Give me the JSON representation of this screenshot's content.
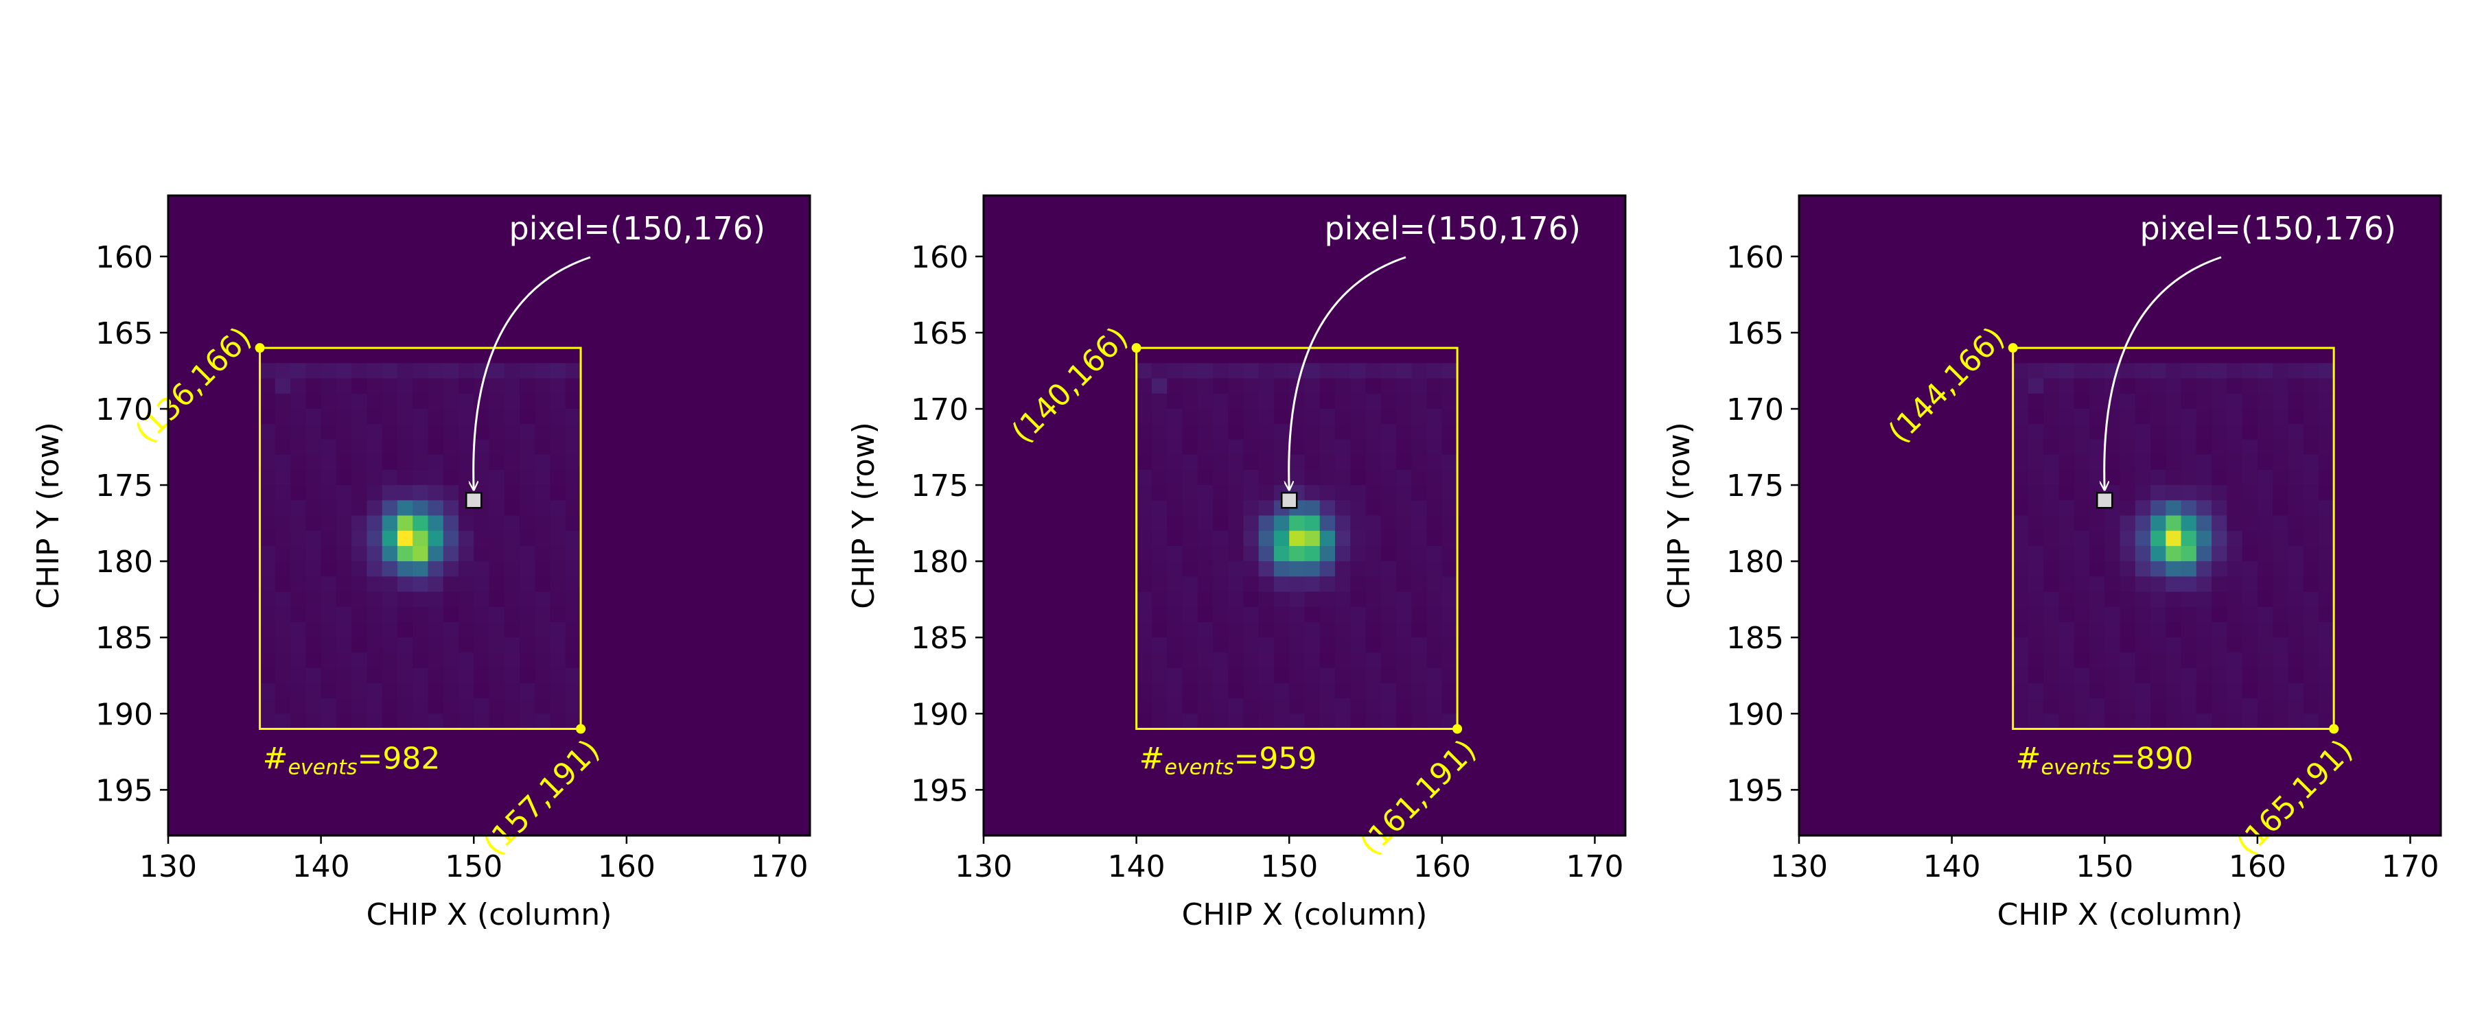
{
  "chart_data": [
    {
      "type": "heatmap",
      "xlabel": "CHIP X (column)",
      "ylabel": "CHIP Y (row)",
      "xlim": [
        130,
        172
      ],
      "ylim": [
        198,
        156
      ],
      "y_inverted": true,
      "xticks": [
        130,
        140,
        150,
        160,
        170
      ],
      "yticks": [
        160,
        165,
        170,
        175,
        180,
        185,
        190,
        195
      ],
      "xtick_labels": [
        "130",
        "140",
        "150",
        "160",
        "170"
      ],
      "ytick_labels": [
        "160",
        "165",
        "170",
        "175",
        "180",
        "185",
        "190",
        "195"
      ],
      "colormap": "viridis",
      "psf_center": [
        146,
        178.5
      ],
      "psf_peak": 1.0,
      "box": {
        "x0": 136,
        "y0": 166,
        "x1": 157,
        "y1": 191,
        "color": "#ffff00"
      },
      "corner_labels": {
        "top_left": "(136,166)",
        "bottom_right": "(157,191)"
      },
      "events_label": {
        "prefix": "#",
        "subscript": "events",
        "value": "=982"
      },
      "pixel_marker": {
        "x": 150,
        "y": 176,
        "label": "pixel=(150,176)"
      }
    },
    {
      "type": "heatmap",
      "xlabel": "CHIP X (column)",
      "ylabel": "CHIP Y (row)",
      "xlim": [
        130,
        172
      ],
      "ylim": [
        198,
        156
      ],
      "y_inverted": true,
      "xticks": [
        130,
        140,
        150,
        160,
        170
      ],
      "yticks": [
        160,
        165,
        170,
        175,
        180,
        185,
        190,
        195
      ],
      "xtick_labels": [
        "130",
        "140",
        "150",
        "160",
        "170"
      ],
      "ytick_labels": [
        "160",
        "165",
        "170",
        "175",
        "180",
        "185",
        "190",
        "195"
      ],
      "colormap": "viridis",
      "psf_center": [
        150.7,
        178.6
      ],
      "psf_peak": 0.92,
      "box": {
        "x0": 140,
        "y0": 166,
        "x1": 161,
        "y1": 191,
        "color": "#ffff00"
      },
      "corner_labels": {
        "top_left": "(140,166)",
        "bottom_right": "(161,191)"
      },
      "events_label": {
        "prefix": "#",
        "subscript": "events",
        "value": "=959"
      },
      "pixel_marker": {
        "x": 150,
        "y": 176,
        "label": "pixel=(150,176)"
      }
    },
    {
      "type": "heatmap",
      "xlabel": "CHIP X (column)",
      "ylabel": "CHIP Y (row)",
      "xlim": [
        130,
        172
      ],
      "ylim": [
        198,
        156
      ],
      "y_inverted": true,
      "xticks": [
        130,
        140,
        150,
        160,
        170
      ],
      "yticks": [
        160,
        165,
        170,
        175,
        180,
        185,
        190,
        195
      ],
      "xtick_labels": [
        "130",
        "140",
        "150",
        "160",
        "170"
      ],
      "ytick_labels": [
        "160",
        "165",
        "170",
        "175",
        "180",
        "185",
        "190",
        "195"
      ],
      "colormap": "viridis",
      "psf_center": [
        154.7,
        178.6
      ],
      "psf_peak": 0.9,
      "box": {
        "x0": 144,
        "y0": 166,
        "x1": 165,
        "y1": 191,
        "color": "#ffff00"
      },
      "corner_labels": {
        "top_left": "(144,166)",
        "bottom_right": "(165,191)"
      },
      "events_label": {
        "prefix": "#",
        "subscript": "events",
        "value": "=890"
      },
      "pixel_marker": {
        "x": 150,
        "y": 176,
        "label": "pixel=(150,176)"
      }
    }
  ],
  "colors": {
    "background": "#440154",
    "box": "#ffff00",
    "annotation": "#ffffff",
    "marker_fill": "#d9d9d9"
  }
}
